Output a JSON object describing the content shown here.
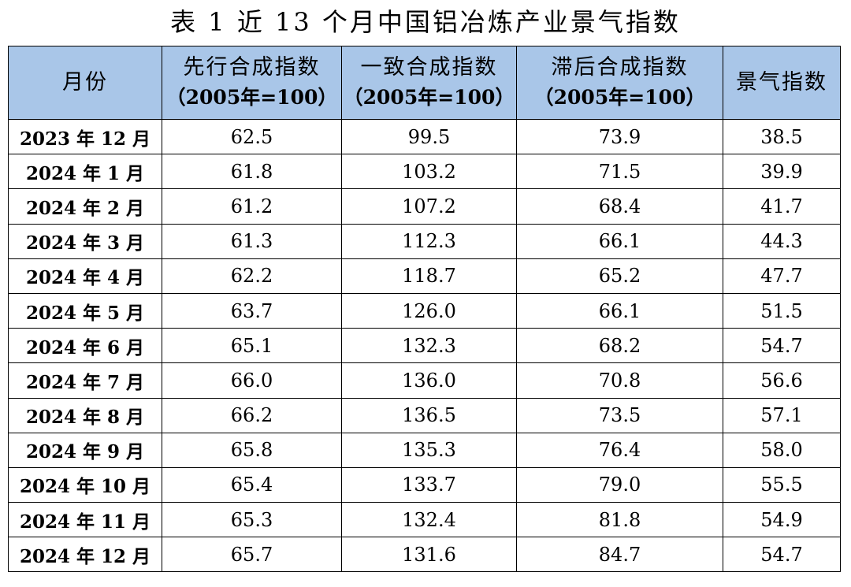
{
  "caption": "表 1  近 13 个月中国铝冶炼产业景气指数",
  "columns": {
    "month": "月份",
    "leading": "先行合成指数",
    "coincident": "一致合成指数",
    "lagging": "滞后合成指数",
    "base": "（2005年=100）",
    "climate": "景气指数"
  },
  "rows": [
    {
      "month": "2023 年 12 月",
      "leading": "62.5",
      "coincident": "99.5",
      "lagging": "73.9",
      "climate": "38.5"
    },
    {
      "month": "2024 年 1 月",
      "leading": "61.8",
      "coincident": "103.2",
      "lagging": "71.5",
      "climate": "39.9"
    },
    {
      "month": "2024 年 2 月",
      "leading": "61.2",
      "coincident": "107.2",
      "lagging": "68.4",
      "climate": "41.7"
    },
    {
      "month": "2024 年 3 月",
      "leading": "61.3",
      "coincident": "112.3",
      "lagging": "66.1",
      "climate": "44.3"
    },
    {
      "month": "2024 年 4 月",
      "leading": "62.2",
      "coincident": "118.7",
      "lagging": "65.2",
      "climate": "47.7"
    },
    {
      "month": "2024 年 5 月",
      "leading": "63.7",
      "coincident": "126.0",
      "lagging": "66.1",
      "climate": "51.5"
    },
    {
      "month": "2024 年 6 月",
      "leading": "65.1",
      "coincident": "132.3",
      "lagging": "68.2",
      "climate": "54.7"
    },
    {
      "month": "2024 年 7 月",
      "leading": "66.0",
      "coincident": "136.0",
      "lagging": "70.8",
      "climate": "56.6"
    },
    {
      "month": "2024 年 8 月",
      "leading": "66.2",
      "coincident": "136.5",
      "lagging": "73.5",
      "climate": "57.1"
    },
    {
      "month": "2024 年 9 月",
      "leading": "65.8",
      "coincident": "135.3",
      "lagging": "76.4",
      "climate": "58.0"
    },
    {
      "month": "2024 年 10 月",
      "leading": "65.4",
      "coincident": "133.7",
      "lagging": "79.0",
      "climate": "55.5"
    },
    {
      "month": "2024 年 11 月",
      "leading": "65.3",
      "coincident": "132.4",
      "lagging": "81.8",
      "climate": "54.9"
    },
    {
      "month": "2024 年 12 月",
      "leading": "65.7",
      "coincident": "131.6",
      "lagging": "84.7",
      "climate": "54.7"
    }
  ]
}
